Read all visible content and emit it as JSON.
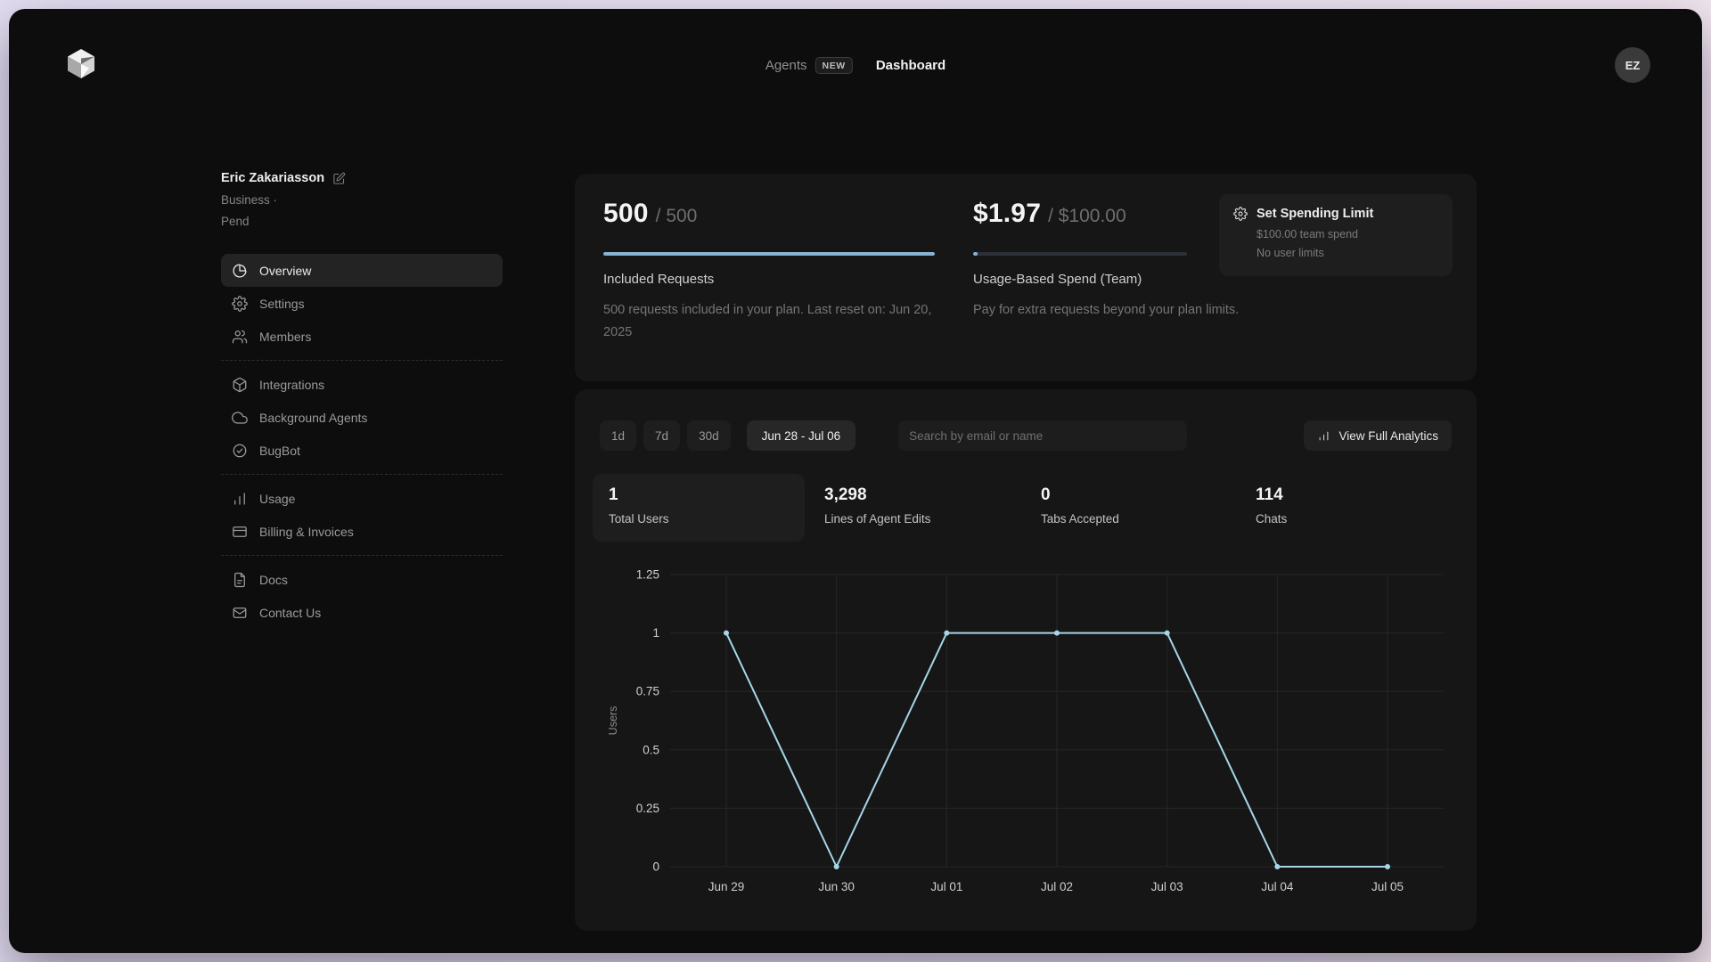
{
  "header": {
    "nav": [
      {
        "label": "Agents",
        "badge": "NEW"
      },
      {
        "label": "Dashboard"
      }
    ],
    "avatar_initials": "EZ"
  },
  "sidebar": {
    "user": {
      "name": "Eric Zakariasson",
      "meta_line1": "Business ·",
      "meta_line2": "Pend"
    },
    "groups": [
      {
        "items": [
          {
            "label": "Overview",
            "active": true
          },
          {
            "label": "Settings"
          },
          {
            "label": "Members"
          }
        ]
      },
      {
        "items": [
          {
            "label": "Integrations"
          },
          {
            "label": "Background Agents"
          },
          {
            "label": "BugBot"
          }
        ]
      },
      {
        "items": [
          {
            "label": "Usage"
          },
          {
            "label": "Billing & Invoices"
          }
        ]
      },
      {
        "items": [
          {
            "label": "Docs"
          },
          {
            "label": "Contact Us"
          }
        ]
      }
    ]
  },
  "cards": {
    "included_requests": {
      "value": "500",
      "total_display": "/ 500",
      "title": "Included Requests",
      "description": "500 requests included in your plan. Last reset on: Jun 20, 2025",
      "progress_pct": 100
    },
    "usage_spend": {
      "value": "$1.97",
      "total_display": "/ $100.00",
      "title": "Usage-Based Spend (Team)",
      "description": "Pay for extra requests beyond your plan limits.",
      "progress_pct": 2
    },
    "spending_limit": {
      "title": "Set Spending Limit",
      "line1": "$100.00 team spend",
      "line2": "No user limits"
    }
  },
  "analytics": {
    "range_buttons": [
      "1d",
      "7d",
      "30d"
    ],
    "date_range": "Jun 28 - Jul 06",
    "search_placeholder": "Search by email or name",
    "view_full_label": "View Full Analytics",
    "stats": [
      {
        "value": "1",
        "label": "Total Users",
        "selected": true
      },
      {
        "value": "3,298",
        "label": "Lines of Agent Edits",
        "selected": false
      },
      {
        "value": "0",
        "label": "Tabs Accepted",
        "selected": false
      },
      {
        "value": "114",
        "label": "Chats",
        "selected": false
      }
    ]
  },
  "chart_data": {
    "type": "line",
    "x": [
      "Jun 29",
      "Jun 30",
      "Jul 01",
      "Jul 02",
      "Jul 03",
      "Jul 04",
      "Jul 05"
    ],
    "series": [
      {
        "name": "Users",
        "values": [
          1,
          0,
          1,
          1,
          1,
          0,
          0
        ]
      }
    ],
    "title": "",
    "xlabel": "",
    "ylabel": "Users",
    "ylim": [
      0,
      1.25
    ],
    "yticks": [
      0,
      0.25,
      0.5,
      0.75,
      1,
      1.25
    ],
    "grid": true,
    "legend": false
  },
  "colors": {
    "accent_progress": "#8ab3d3",
    "chart_line": "#a6d7e8",
    "grid_line": "#262626",
    "tick_text": "#cfcfcf",
    "axis_label_text": "#8a8a8a"
  }
}
